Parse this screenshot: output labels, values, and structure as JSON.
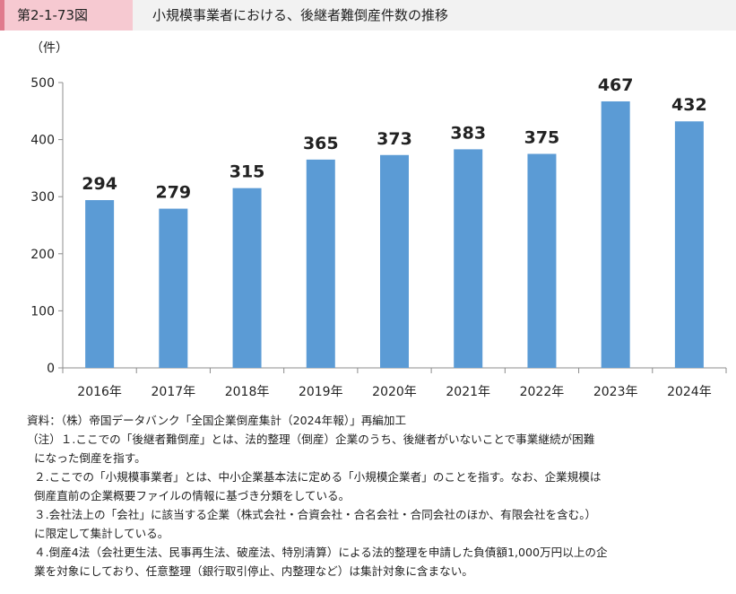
{
  "header": {
    "figure_label": "第2-1-73図",
    "title": "小規模事業者における、後継者難倒産件数の推移"
  },
  "chart_data": {
    "type": "bar",
    "ylabel": "（件）",
    "categories": [
      "2016年",
      "2017年",
      "2018年",
      "2019年",
      "2020年",
      "2021年",
      "2022年",
      "2023年",
      "2024年"
    ],
    "values": [
      294,
      279,
      315,
      365,
      373,
      383,
      375,
      467,
      432
    ],
    "ylim": [
      0,
      500
    ],
    "yticks": [
      0,
      100,
      200,
      300,
      400,
      500
    ],
    "bar_color": "#5b9bd5",
    "grid": false
  },
  "notes": {
    "source": "資料：（株）帝国データバンク「全国企業倒産集計（2024年報）」再編加工",
    "lines": [
      "（注）１.ここでの「後継者難倒産」とは、法的整理（倒産）企業のうち、後継者がいないことで事業継続が困難",
      "になった倒産を指す。",
      "２.ここでの「小規模事業者」とは、中小企業基本法に定める「小規模企業者」のことを指す。なお、企業規模は",
      "倒産直前の企業概要ファイルの情報に基づき分類をしている。",
      "３.会社法上の「会社」に該当する企業（株式会社・合資会社・合名会社・合同会社のほか、有限会社を含む。）",
      "に限定して集計している。",
      "４.倒産4法（会社更生法、民事再生法、破産法、特別清算）による法的整理を申請した負債額1,000万円以上の企",
      "業を対象にしており、任意整理（銀行取引停止、内整理など）は集計対象に含まない。"
    ]
  }
}
